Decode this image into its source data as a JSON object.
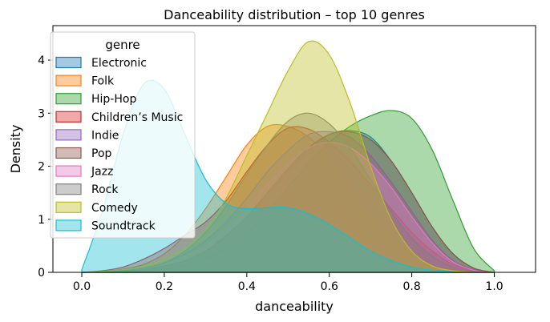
{
  "chart_data": {
    "type": "area",
    "title": "Danceability distribution – top 10 genres",
    "xlabel": "danceability",
    "ylabel": "Density",
    "xlim": [
      -0.07,
      1.1
    ],
    "ylim": [
      0,
      4.65
    ],
    "xticks": [
      "0.0",
      "0.2",
      "0.4",
      "0.6",
      "0.8",
      "1.0"
    ],
    "yticks": [
      "0",
      "1",
      "2",
      "3",
      "4"
    ],
    "grid": false,
    "legend": {
      "title": "genre",
      "placement": "upper-left"
    },
    "x": [
      0.0,
      0.05,
      0.1,
      0.15,
      0.2,
      0.25,
      0.3,
      0.35,
      0.4,
      0.45,
      0.5,
      0.55,
      0.6,
      0.65,
      0.7,
      0.75,
      0.8,
      0.85,
      0.9,
      0.95,
      1.0
    ],
    "series": [
      {
        "name": "Electronic",
        "color": "#1f77b4",
        "values": [
          0,
          0.01,
          0.03,
          0.06,
          0.12,
          0.22,
          0.4,
          0.7,
          1.05,
          1.45,
          1.9,
          2.3,
          2.6,
          2.67,
          2.55,
          2.1,
          1.5,
          0.85,
          0.35,
          0.08,
          0
        ]
      },
      {
        "name": "Folk",
        "color": "#ff7f0e",
        "values": [
          0,
          0.02,
          0.06,
          0.15,
          0.35,
          0.7,
          1.2,
          1.8,
          2.4,
          2.75,
          2.75,
          2.55,
          2.15,
          1.6,
          1.1,
          0.65,
          0.35,
          0.15,
          0.05,
          0.01,
          0
        ]
      },
      {
        "name": "Hip-Hop",
        "color": "#2ca02c",
        "values": [
          0,
          0.005,
          0.01,
          0.03,
          0.06,
          0.12,
          0.25,
          0.45,
          0.75,
          1.15,
          1.6,
          2.05,
          2.45,
          2.75,
          2.95,
          3.05,
          2.9,
          2.3,
          1.35,
          0.45,
          0.03
        ]
      },
      {
        "name": "Children’s Music",
        "color": "#d62728",
        "values": [
          0,
          0.03,
          0.1,
          0.25,
          0.45,
          0.7,
          0.95,
          1.35,
          1.9,
          2.4,
          2.72,
          2.7,
          2.45,
          2.1,
          1.65,
          1.2,
          0.75,
          0.4,
          0.15,
          0.04,
          0
        ]
      },
      {
        "name": "Indie",
        "color": "#9467bd",
        "values": [
          0,
          0.01,
          0.03,
          0.08,
          0.18,
          0.35,
          0.6,
          0.95,
          1.4,
          1.9,
          2.3,
          2.6,
          2.65,
          2.55,
          2.2,
          1.7,
          1.15,
          0.6,
          0.22,
          0.05,
          0
        ]
      },
      {
        "name": "Pop",
        "color": "#8c564b",
        "values": [
          0,
          0.01,
          0.02,
          0.05,
          0.12,
          0.22,
          0.4,
          0.68,
          1.05,
          1.5,
          1.95,
          2.35,
          2.6,
          2.65,
          2.5,
          2.1,
          1.5,
          0.85,
          0.35,
          0.08,
          0
        ]
      },
      {
        "name": "Jazz",
        "color": "#e377c2",
        "values": [
          0,
          0.01,
          0.03,
          0.07,
          0.15,
          0.3,
          0.5,
          0.8,
          1.2,
          1.65,
          2.05,
          2.35,
          2.45,
          2.35,
          2.05,
          1.6,
          1.05,
          0.55,
          0.2,
          0.04,
          0
        ]
      },
      {
        "name": "Rock",
        "color": "#7f7f7f",
        "values": [
          0,
          0.01,
          0.03,
          0.08,
          0.18,
          0.4,
          0.75,
          1.25,
          1.85,
          2.4,
          2.85,
          3.0,
          2.8,
          2.35,
          1.75,
          1.15,
          0.65,
          0.3,
          0.1,
          0.02,
          0
        ]
      },
      {
        "name": "Comedy",
        "color": "#bcbd22",
        "values": [
          0,
          0.02,
          0.05,
          0.12,
          0.25,
          0.45,
          0.8,
          1.4,
          2.2,
          3.0,
          3.8,
          4.35,
          4.1,
          3.2,
          2.0,
          1.0,
          0.4,
          0.12,
          0.03,
          0.005,
          0
        ]
      },
      {
        "name": "Soundtrack",
        "color": "#17becf",
        "values": [
          0.05,
          1.15,
          2.6,
          3.55,
          3.45,
          2.6,
          1.75,
          1.3,
          1.2,
          1.22,
          1.22,
          1.1,
          0.9,
          0.65,
          0.4,
          0.22,
          0.1,
          0.04,
          0.01,
          0.002,
          0
        ]
      }
    ]
  }
}
